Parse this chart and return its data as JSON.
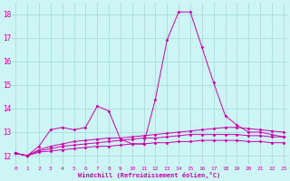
{
  "xlabel": "Windchill (Refroidissement éolien,°C)",
  "x_ticks": [
    0,
    1,
    2,
    3,
    4,
    5,
    6,
    7,
    8,
    9,
    10,
    11,
    12,
    13,
    14,
    15,
    16,
    17,
    18,
    19,
    20,
    21,
    22,
    23
  ],
  "y_ticks": [
    12,
    13,
    14,
    15,
    16,
    17,
    18
  ],
  "ylim": [
    11.6,
    18.5
  ],
  "xlim": [
    -0.3,
    23.3
  ],
  "bg_color": "#cdf5f5",
  "grid_color": "#aadddd",
  "line_color": "#cc00aa",
  "series": [
    [
      12.1,
      12.0,
      12.4,
      13.1,
      13.2,
      13.1,
      13.2,
      14.1,
      13.9,
      12.7,
      12.5,
      12.5,
      14.4,
      16.9,
      18.1,
      18.1,
      16.6,
      15.1,
      13.7,
      13.3,
      13.0,
      13.0,
      12.9,
      12.8
    ],
    [
      12.1,
      12.0,
      12.25,
      12.4,
      12.5,
      12.6,
      12.65,
      12.7,
      12.75,
      12.75,
      12.8,
      12.85,
      12.9,
      12.95,
      13.0,
      13.05,
      13.1,
      13.15,
      13.2,
      13.2,
      13.15,
      13.1,
      13.05,
      13.0
    ],
    [
      12.1,
      12.0,
      12.2,
      12.3,
      12.4,
      12.45,
      12.5,
      12.55,
      12.6,
      12.65,
      12.7,
      12.75,
      12.75,
      12.8,
      12.85,
      12.9,
      12.9,
      12.9,
      12.9,
      12.9,
      12.85,
      12.85,
      12.8,
      12.8
    ],
    [
      12.1,
      12.0,
      12.15,
      12.2,
      12.25,
      12.3,
      12.35,
      12.4,
      12.4,
      12.45,
      12.5,
      12.5,
      12.55,
      12.55,
      12.6,
      12.6,
      12.65,
      12.65,
      12.65,
      12.65,
      12.6,
      12.6,
      12.55,
      12.55
    ]
  ]
}
